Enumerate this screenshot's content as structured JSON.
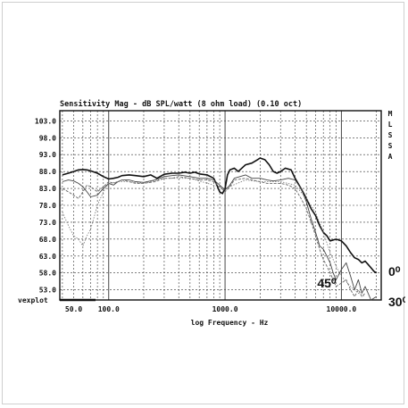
{
  "chart_data": {
    "type": "line",
    "title": "Sensitivity Mag - dB SPL/watt (8 ohm load) (0.10 oct)",
    "xlabel": "log Frequency - Hz",
    "ylabel": "",
    "x_scale": "log",
    "xlim": [
      38,
      22000
    ],
    "ylim": [
      50,
      106
    ],
    "x_ticks": [
      {
        "value": 50,
        "label": "50.0"
      },
      {
        "value": 100,
        "label": "100.0"
      },
      {
        "value": 1000,
        "label": "1000.0"
      },
      {
        "value": 10000,
        "label": "10000.0"
      }
    ],
    "y_ticks": [
      {
        "value": 103,
        "label": "103.0"
      },
      {
        "value": 98,
        "label": "98.0"
      },
      {
        "value": 93,
        "label": "93.0"
      },
      {
        "value": 88,
        "label": "88.0"
      },
      {
        "value": 83,
        "label": "83.0"
      },
      {
        "value": 78,
        "label": "78.0"
      },
      {
        "value": 73,
        "label": "73.0"
      },
      {
        "value": 68,
        "label": "68.0"
      },
      {
        "value": 63,
        "label": "63.0"
      },
      {
        "value": 58,
        "label": "58.0"
      },
      {
        "value": 53,
        "label": "53.0"
      }
    ],
    "grid": true,
    "legend_letters": [
      "M",
      "L",
      "S",
      "S",
      "A"
    ],
    "corner_label": "vexplot",
    "annotations": [
      {
        "text": "0⁰",
        "x": 20000,
        "y": 58.5
      },
      {
        "text": "45⁰",
        "x": 6200,
        "y": 55
      },
      {
        "text": "30⁰",
        "x": 20000,
        "y": 49.5
      }
    ],
    "series": [
      {
        "label": "0⁰",
        "x": [
          40,
          45,
          50,
          55,
          60,
          65,
          70,
          80,
          90,
          100,
          110,
          120,
          130,
          150,
          170,
          200,
          230,
          260,
          300,
          350,
          400,
          450,
          500,
          550,
          600,
          700,
          800,
          850,
          900,
          950,
          1000,
          1050,
          1100,
          1200,
          1300,
          1500,
          1700,
          1900,
          2000,
          2200,
          2400,
          2600,
          2800,
          3000,
          3300,
          3700,
          4000,
          4500,
          5000,
          5500,
          6000,
          6500,
          7000,
          7500,
          8000,
          9000,
          10000,
          11000,
          12000,
          13000,
          14000,
          15000,
          16000,
          17000,
          18000,
          19000,
          20000
        ],
        "y": [
          87,
          87.5,
          88,
          88.5,
          88.6,
          88.5,
          88.2,
          87.5,
          86.5,
          85.8,
          86,
          86.3,
          86.8,
          87,
          86.8,
          86.5,
          87,
          86,
          87.2,
          87.5,
          87.5,
          87.8,
          87.5,
          87.8,
          87.3,
          87,
          86,
          84,
          82,
          81.5,
          83,
          87,
          88.5,
          89,
          88,
          90,
          90.5,
          91.5,
          92,
          91.5,
          90,
          88,
          87.5,
          88,
          89,
          88.5,
          86,
          83,
          80,
          77,
          75,
          72,
          70,
          69,
          67.5,
          68,
          67.5,
          66,
          64,
          62.5,
          62,
          61,
          61.5,
          60.5,
          59.5,
          58.5,
          58
        ]
      },
      {
        "label": "30⁰",
        "x": [
          40,
          45,
          50,
          55,
          60,
          65,
          70,
          80,
          90,
          100,
          110,
          120,
          130,
          150,
          170,
          200,
          250,
          300,
          350,
          400,
          500,
          600,
          700,
          800,
          900,
          1000,
          1100,
          1200,
          1500,
          1700,
          2000,
          2300,
          2600,
          3000,
          3500,
          4000,
          4500,
          5000,
          5500,
          6000,
          6500,
          7000,
          7500,
          8000,
          8500,
          9000,
          10000,
          11000,
          12000,
          13000,
          14000,
          15000,
          16000,
          18000,
          20000
        ],
        "y": [
          85,
          85.5,
          85.2,
          84.5,
          83.5,
          82,
          80.5,
          81,
          83,
          84.5,
          84,
          85,
          85.5,
          85.5,
          85,
          84.8,
          85.5,
          86.5,
          86.8,
          87,
          86.5,
          86,
          86,
          85.5,
          84,
          82.5,
          84,
          86,
          87,
          86,
          86,
          85.5,
          85.2,
          85.5,
          86,
          85.5,
          83,
          79,
          74,
          70,
          66,
          65,
          63,
          61,
          58,
          56,
          59,
          61,
          57,
          53,
          56,
          52,
          54,
          50,
          51
        ]
      },
      {
        "label": "45⁰",
        "x": [
          40,
          45,
          50,
          55,
          60,
          65,
          70,
          80,
          90,
          100,
          110,
          120,
          130,
          150,
          170,
          200,
          250,
          300,
          350,
          400,
          500,
          600,
          700,
          800,
          900,
          1000,
          1100,
          1200,
          1500,
          1700,
          2000,
          2300,
          2600,
          3000,
          3500,
          4000,
          4500,
          5000,
          5500,
          6000,
          6500,
          7000,
          7500,
          8000,
          8500,
          9000,
          10000,
          11000,
          12000,
          13000,
          14000,
          15000,
          16000
        ],
        "y": [
          83,
          82,
          81,
          80,
          82,
          84,
          83.5,
          82,
          83.5,
          85,
          84.5,
          85,
          85.5,
          85,
          84.5,
          84.5,
          85,
          86,
          86,
          86.5,
          86,
          85.5,
          85.5,
          85,
          83.5,
          82,
          83.5,
          85.5,
          86,
          85.5,
          85,
          84.5,
          84.5,
          84.5,
          84,
          83,
          80,
          77,
          73,
          69,
          65,
          62,
          60,
          58,
          56,
          54,
          55,
          56,
          53,
          51,
          53,
          51,
          52
        ]
      },
      {
        "label": "",
        "x": [
          40,
          45,
          50,
          55,
          60,
          65,
          70,
          80,
          90,
          100,
          120,
          150,
          200,
          300,
          500,
          1000,
          1500,
          2000,
          3000,
          4000,
          5000,
          6000,
          7000,
          8000,
          9000,
          10000,
          12000,
          14000,
          16000
        ],
        "y": [
          76,
          72,
          69,
          68,
          66,
          69,
          71,
          78,
          82,
          84.5,
          85,
          85,
          84.5,
          86,
          86,
          83,
          85.5,
          85,
          85,
          84,
          80,
          76,
          70,
          64,
          60,
          57,
          54,
          52,
          51
        ]
      }
    ]
  }
}
